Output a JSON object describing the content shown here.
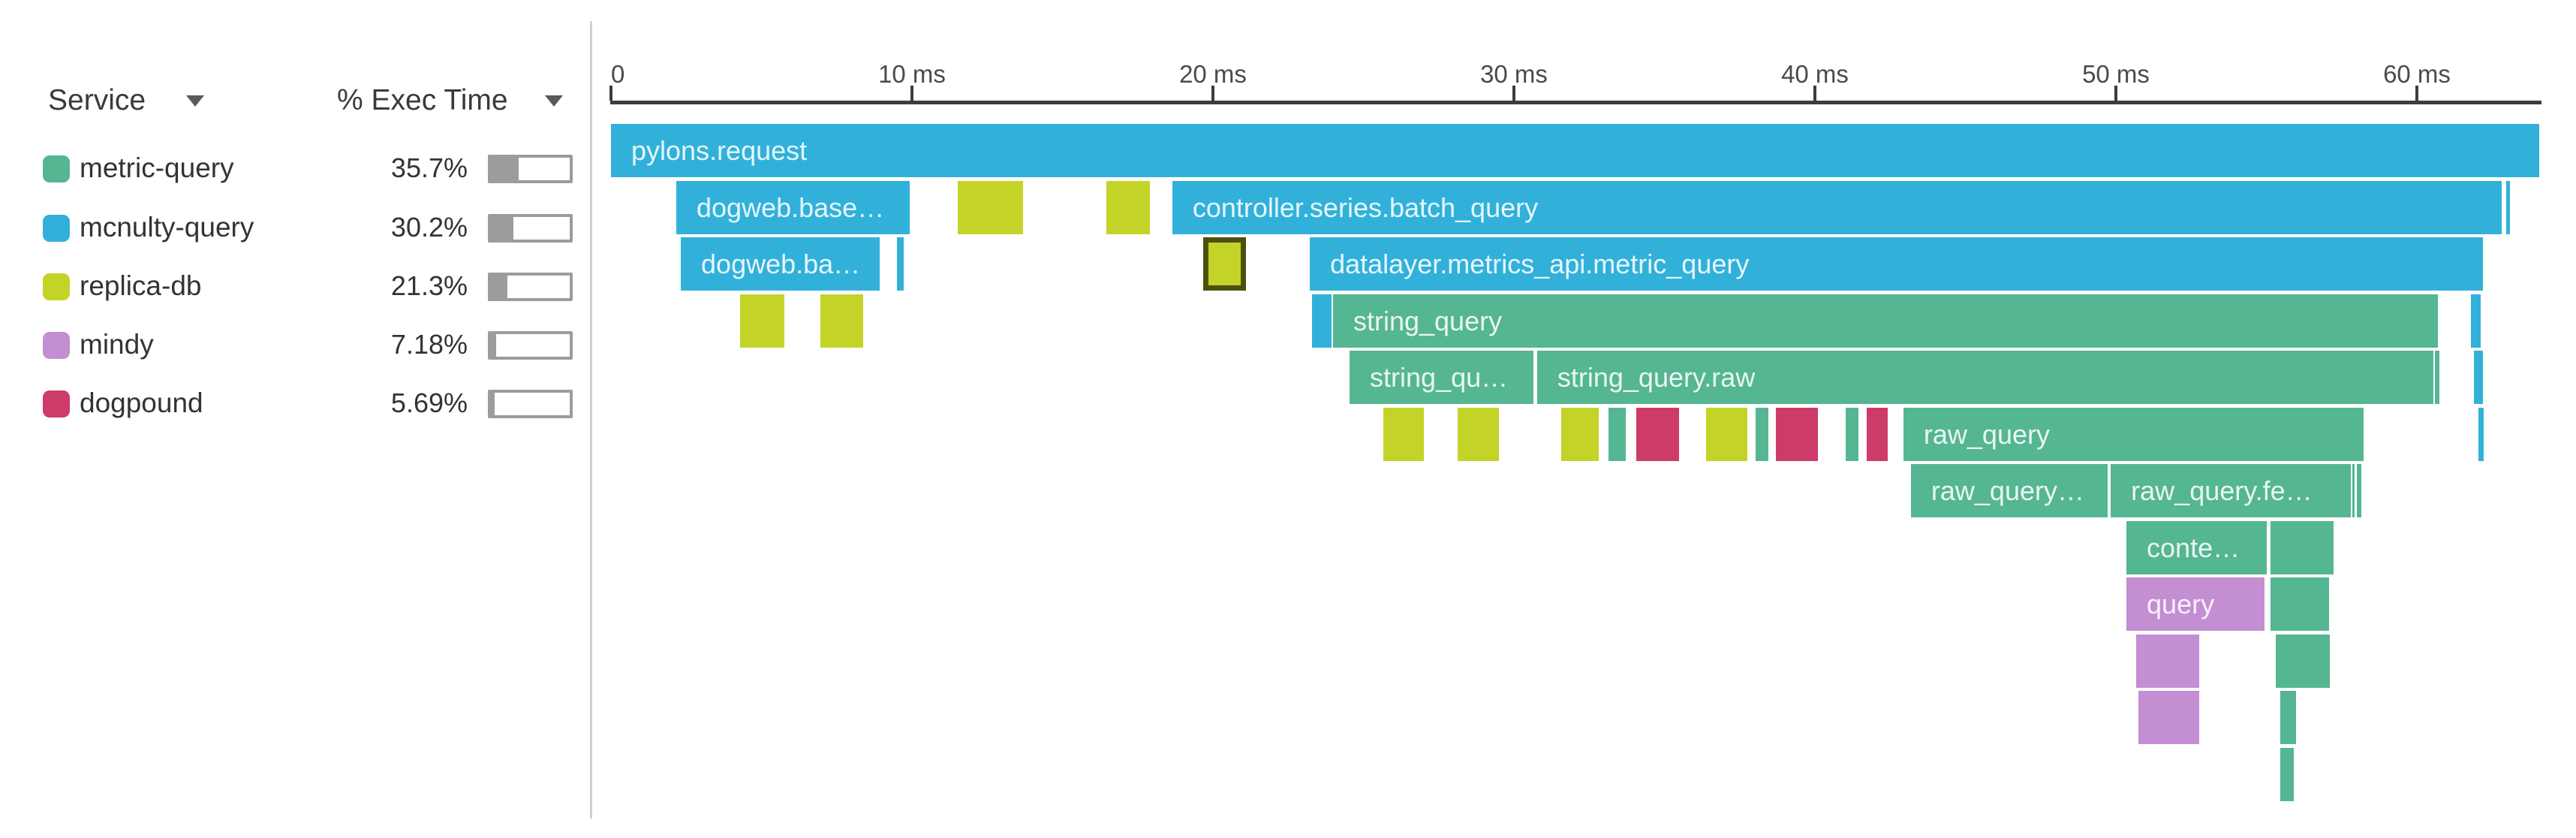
{
  "colors": {
    "mcnulty-query": "#31b1da",
    "metric-query": "#55b692",
    "replica-db": "#c4d327",
    "mindy": "#c48ed2",
    "dogpound": "#cd3b69",
    "selected_border": "#4b510d",
    "axis": "#3d3d3d",
    "meter": "#9c9c9c"
  },
  "sidebar": {
    "service_header": "Service",
    "exec_header": "% Exec Time",
    "services": [
      {
        "name": "metric-query",
        "color_key": "metric-query",
        "pct": "35.7%",
        "fill_pct": 35
      },
      {
        "name": "mcnulty-query",
        "color_key": "mcnulty-query",
        "pct": "30.2%",
        "fill_pct": 29
      },
      {
        "name": "replica-db",
        "color_key": "replica-db",
        "pct": "21.3%",
        "fill_pct": 21
      },
      {
        "name": "mindy",
        "color_key": "mindy",
        "pct": "7.18%",
        "fill_pct": 7
      },
      {
        "name": "dogpound",
        "color_key": "dogpound",
        "pct": "5.69%",
        "fill_pct": 5
      }
    ]
  },
  "chart_data": {
    "type": "flamegraph",
    "title": "Trace flame graph by service",
    "x_axis": {
      "unit": "ms",
      "tick_values": [
        0,
        10,
        20,
        30,
        40,
        50,
        60
      ],
      "tick_labels": [
        "0",
        "10 ms",
        "20 ms",
        "30 ms",
        "40 ms",
        "50 ms",
        "60 ms"
      ],
      "range_ms": [
        0,
        64.5
      ],
      "grid": false
    },
    "legend": [
      {
        "service": "metric-query",
        "exec_time_pct": 35.7
      },
      {
        "service": "mcnulty-query",
        "exec_time_pct": 30.2
      },
      {
        "service": "replica-db",
        "exec_time_pct": 21.3
      },
      {
        "service": "mindy",
        "exec_time_pct": 7.18
      },
      {
        "service": "dogpound",
        "exec_time_pct": 5.69
      }
    ],
    "spans": [
      {
        "row": 0,
        "service": "mcnulty-query",
        "label": "pylons.request",
        "start_ms": 0.0,
        "end_ms": 64.06
      },
      {
        "row": 1,
        "service": "mcnulty-query",
        "label": "dogweb.base…",
        "start_ms": 2.17,
        "end_ms": 9.93
      },
      {
        "row": 1,
        "service": "replica-db",
        "label": "",
        "start_ms": 11.52,
        "end_ms": 13.69
      },
      {
        "row": 1,
        "service": "replica-db",
        "label": "",
        "start_ms": 16.46,
        "end_ms": 17.91
      },
      {
        "row": 1,
        "service": "mcnulty-query",
        "label": "controller.series.batch_query",
        "start_ms": 18.65,
        "end_ms": 62.82
      },
      {
        "row": 1,
        "service": "mcnulty-query",
        "label": "",
        "start_ms": 62.97,
        "end_ms": 63.09
      },
      {
        "row": 2,
        "service": "mcnulty-query",
        "label": "dogweb.ba…",
        "start_ms": 2.32,
        "end_ms": 8.93
      },
      {
        "row": 2,
        "service": "mcnulty-query",
        "label": "",
        "start_ms": 9.5,
        "end_ms": 9.73
      },
      {
        "row": 2,
        "service": "replica-db",
        "label": "",
        "start_ms": 19.68,
        "end_ms": 21.1,
        "selected": true
      },
      {
        "row": 2,
        "service": "mcnulty-query",
        "label": "datalayer.metrics_api.metric_query",
        "start_ms": 23.22,
        "end_ms": 62.19
      },
      {
        "row": 3,
        "service": "replica-db",
        "label": "",
        "start_ms": 4.29,
        "end_ms": 5.76
      },
      {
        "row": 3,
        "service": "replica-db",
        "label": "",
        "start_ms": 6.96,
        "end_ms": 8.38
      },
      {
        "row": 3,
        "service": "mcnulty-query",
        "label": "",
        "start_ms": 23.29,
        "end_ms": 23.95
      },
      {
        "row": 3,
        "service": "metric-query",
        "label": "string_query",
        "start_ms": 23.99,
        "end_ms": 60.7
      },
      {
        "row": 3,
        "service": "mcnulty-query",
        "label": "",
        "start_ms": 61.8,
        "end_ms": 62.12
      },
      {
        "row": 4,
        "service": "metric-query",
        "label": "string_qu…",
        "start_ms": 24.54,
        "end_ms": 30.65
      },
      {
        "row": 4,
        "service": "metric-query",
        "label": "string_query.raw",
        "start_ms": 30.77,
        "end_ms": 60.55
      },
      {
        "row": 4,
        "service": "metric-query",
        "label": "",
        "start_ms": 60.6,
        "end_ms": 60.75
      },
      {
        "row": 4,
        "service": "mcnulty-query",
        "label": "",
        "start_ms": 61.9,
        "end_ms": 62.19
      },
      {
        "row": 5,
        "service": "replica-db",
        "label": "",
        "start_ms": 25.66,
        "end_ms": 27.01
      },
      {
        "row": 5,
        "service": "replica-db",
        "label": "",
        "start_ms": 28.13,
        "end_ms": 29.5
      },
      {
        "row": 5,
        "service": "replica-db",
        "label": "",
        "start_ms": 31.57,
        "end_ms": 32.82
      },
      {
        "row": 5,
        "service": "metric-query",
        "label": "",
        "start_ms": 33.14,
        "end_ms": 33.72
      },
      {
        "row": 5,
        "service": "dogpound",
        "label": "",
        "start_ms": 34.06,
        "end_ms": 35.49
      },
      {
        "row": 5,
        "service": "replica-db",
        "label": "",
        "start_ms": 36.38,
        "end_ms": 37.76
      },
      {
        "row": 5,
        "service": "metric-query",
        "label": "",
        "start_ms": 38.03,
        "end_ms": 38.45
      },
      {
        "row": 5,
        "service": "dogpound",
        "label": "",
        "start_ms": 38.7,
        "end_ms": 40.1
      },
      {
        "row": 5,
        "service": "metric-query",
        "label": "",
        "start_ms": 41.02,
        "end_ms": 41.45
      },
      {
        "row": 5,
        "service": "dogpound",
        "label": "",
        "start_ms": 41.72,
        "end_ms": 42.42
      },
      {
        "row": 5,
        "service": "metric-query",
        "label": "raw_query",
        "start_ms": 42.94,
        "end_ms": 58.23
      },
      {
        "row": 5,
        "service": "mcnulty-query",
        "label": "",
        "start_ms": 62.04,
        "end_ms": 62.22
      },
      {
        "row": 6,
        "service": "metric-query",
        "label": "raw_query…",
        "start_ms": 43.19,
        "end_ms": 49.73
      },
      {
        "row": 6,
        "service": "metric-query",
        "label": "raw_query.fe…",
        "start_ms": 49.83,
        "end_ms": 57.81
      },
      {
        "row": 6,
        "service": "metric-query",
        "label": "",
        "start_ms": 57.86,
        "end_ms": 57.93
      },
      {
        "row": 6,
        "service": "metric-query",
        "label": "",
        "start_ms": 58.0,
        "end_ms": 58.15
      },
      {
        "row": 7,
        "service": "metric-query",
        "label": "conte…",
        "start_ms": 50.35,
        "end_ms": 55.01
      },
      {
        "row": 7,
        "service": "metric-query",
        "label": "",
        "start_ms": 55.14,
        "end_ms": 57.23
      },
      {
        "row": 8,
        "service": "mindy",
        "label": "query",
        "start_ms": 50.35,
        "end_ms": 54.94
      },
      {
        "row": 8,
        "service": "metric-query",
        "label": "",
        "start_ms": 55.14,
        "end_ms": 57.08
      },
      {
        "row": 9,
        "service": "mindy",
        "label": "",
        "start_ms": 50.67,
        "end_ms": 52.77
      },
      {
        "row": 9,
        "service": "metric-query",
        "label": "",
        "start_ms": 55.31,
        "end_ms": 57.11
      },
      {
        "row": 10,
        "service": "mindy",
        "label": "",
        "start_ms": 50.75,
        "end_ms": 52.77
      },
      {
        "row": 10,
        "service": "metric-query",
        "label": "",
        "start_ms": 55.46,
        "end_ms": 55.99
      },
      {
        "row": 11,
        "service": "metric-query",
        "label": "",
        "start_ms": 55.46,
        "end_ms": 55.91
      }
    ]
  }
}
